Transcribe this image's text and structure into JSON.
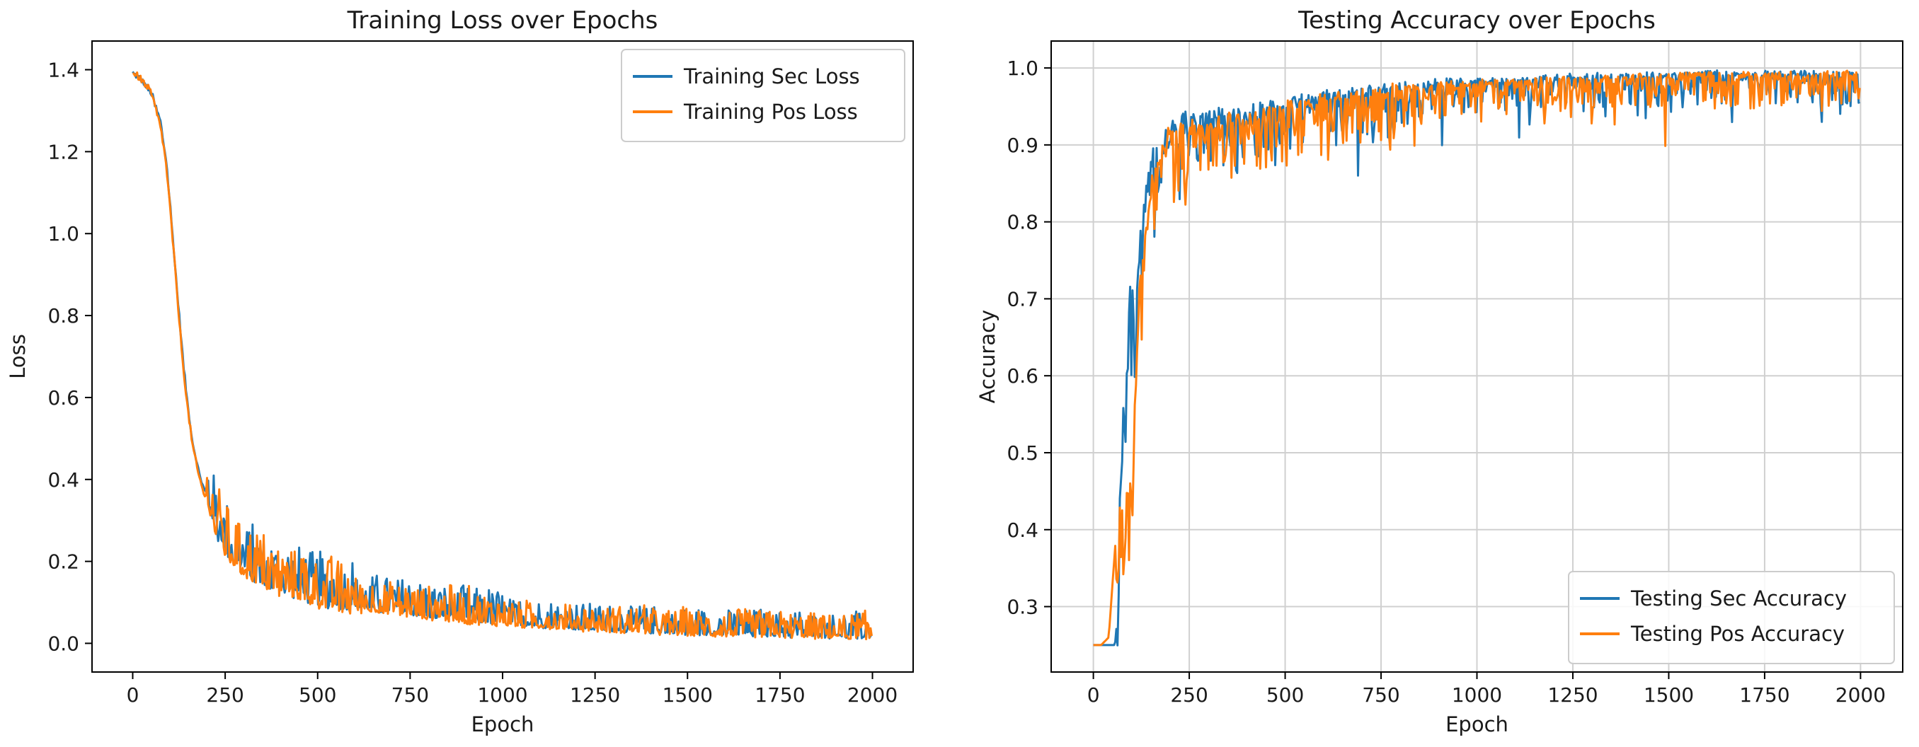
{
  "colors": {
    "sec": "#1f77b4",
    "pos": "#ff7f0e",
    "grid": "#d0d0d0"
  },
  "chart_data": [
    {
      "type": "line",
      "title": "Training Loss over Epochs",
      "xlabel": "Epoch",
      "ylabel": "Loss",
      "xlim": [
        -110,
        2110
      ],
      "ylim": [
        -0.07,
        1.47
      ],
      "xticks": [
        0,
        250,
        500,
        750,
        1000,
        1250,
        1500,
        1750,
        2000
      ],
      "xtick_labels": [
        "0",
        "250",
        "500",
        "750",
        "1000",
        "1250",
        "1500",
        "1750",
        "2000"
      ],
      "yticks": [
        0.0,
        0.2,
        0.4,
        0.6,
        0.8,
        1.0,
        1.2,
        1.4
      ],
      "ytick_labels": [
        "0.0",
        "0.2",
        "0.4",
        "0.6",
        "0.8",
        "1.0",
        "1.2",
        "1.4"
      ],
      "grid": false,
      "legend": "upper right",
      "series": [
        {
          "name": "Training Sec Loss",
          "color": "#1f77b4",
          "x": [
            0,
            25,
            50,
            75,
            90,
            100,
            110,
            120,
            130,
            140,
            150,
            160,
            175,
            190,
            200,
            215,
            230,
            250,
            275,
            300,
            325,
            350,
            375,
            400,
            450,
            500,
            550,
            600,
            650,
            700,
            750,
            800,
            850,
            900,
            950,
            1000,
            1050,
            1100,
            1150,
            1200,
            1250,
            1300,
            1350,
            1400,
            1450,
            1500,
            1550,
            1600,
            1650,
            1700,
            1750,
            1800,
            1850,
            1900,
            1950,
            2000
          ],
          "y": [
            1.39,
            1.37,
            1.34,
            1.27,
            1.18,
            1.08,
            0.97,
            0.86,
            0.75,
            0.65,
            0.57,
            0.5,
            0.43,
            0.38,
            0.36,
            0.32,
            0.27,
            0.24,
            0.21,
            0.19,
            0.17,
            0.16,
            0.15,
            0.14,
            0.13,
            0.11,
            0.1,
            0.095,
            0.09,
            0.085,
            0.08,
            0.075,
            0.07,
            0.065,
            0.06,
            0.055,
            0.05,
            0.048,
            0.045,
            0.042,
            0.04,
            0.038,
            0.036,
            0.034,
            0.032,
            0.03,
            0.029,
            0.028,
            0.027,
            0.026,
            0.025,
            0.024,
            0.023,
            0.022,
            0.021,
            0.02
          ]
        },
        {
          "name": "Training Pos Loss",
          "color": "#ff7f0e",
          "x": [
            0,
            25,
            50,
            75,
            90,
            100,
            110,
            120,
            130,
            140,
            150,
            160,
            175,
            190,
            200,
            215,
            230,
            250,
            275,
            300,
            325,
            350,
            375,
            400,
            450,
            500,
            550,
            600,
            650,
            700,
            750,
            800,
            850,
            900,
            950,
            1000,
            1050,
            1100,
            1150,
            1200,
            1250,
            1300,
            1350,
            1400,
            1450,
            1500,
            1550,
            1600,
            1650,
            1700,
            1750,
            1800,
            1850,
            1900,
            1950,
            2000
          ],
          "y": [
            1.39,
            1.37,
            1.34,
            1.26,
            1.17,
            1.07,
            0.96,
            0.85,
            0.74,
            0.64,
            0.56,
            0.49,
            0.42,
            0.37,
            0.35,
            0.31,
            0.26,
            0.23,
            0.2,
            0.18,
            0.17,
            0.155,
            0.145,
            0.135,
            0.125,
            0.105,
            0.095,
            0.09,
            0.085,
            0.08,
            0.075,
            0.07,
            0.065,
            0.06,
            0.055,
            0.05,
            0.048,
            0.045,
            0.042,
            0.04,
            0.038,
            0.036,
            0.034,
            0.032,
            0.03,
            0.028,
            0.027,
            0.026,
            0.025,
            0.024,
            0.023,
            0.022,
            0.021,
            0.02,
            0.019,
            0.018
          ]
        }
      ]
    },
    {
      "type": "line",
      "title": "Testing Accuracy over Epochs",
      "xlabel": "Epoch",
      "ylabel": "Accuracy",
      "xlim": [
        -110,
        2110
      ],
      "ylim": [
        0.215,
        1.035
      ],
      "xticks": [
        0,
        250,
        500,
        750,
        1000,
        1250,
        1500,
        1750,
        2000
      ],
      "xtick_labels": [
        "0",
        "250",
        "500",
        "750",
        "1000",
        "1250",
        "1500",
        "1750",
        "2000"
      ],
      "yticks": [
        0.3,
        0.4,
        0.5,
        0.6,
        0.7,
        0.8,
        0.9,
        1.0
      ],
      "ytick_labels": [
        "0.3",
        "0.4",
        "0.5",
        "0.6",
        "0.7",
        "0.8",
        "0.9",
        "1.0"
      ],
      "grid": true,
      "legend": "lower right",
      "series": [
        {
          "name": "Testing Sec Accuracy",
          "color": "#1f77b4",
          "x": [
            0,
            20,
            40,
            55,
            60,
            65,
            70,
            75,
            80,
            85,
            90,
            95,
            100,
            105,
            110,
            115,
            120,
            130,
            140,
            150,
            160,
            175,
            190,
            200,
            225,
            250,
            300,
            350,
            400,
            450,
            500,
            550,
            600,
            650,
            700,
            750,
            800,
            850,
            900,
            950,
            1000,
            1100,
            1200,
            1300,
            1400,
            1500,
            1600,
            1700,
            1800,
            1900,
            2000
          ],
          "y": [
            0.25,
            0.25,
            0.25,
            0.25,
            0.26,
            0.38,
            0.45,
            0.52,
            0.57,
            0.6,
            0.67,
            0.71,
            0.7,
            0.69,
            0.7,
            0.72,
            0.76,
            0.8,
            0.84,
            0.87,
            0.89,
            0.9,
            0.91,
            0.92,
            0.93,
            0.93,
            0.935,
            0.94,
            0.94,
            0.945,
            0.95,
            0.955,
            0.96,
            0.96,
            0.965,
            0.97,
            0.975,
            0.975,
            0.98,
            0.98,
            0.98,
            0.983,
            0.985,
            0.987,
            0.988,
            0.99,
            0.99,
            0.99,
            0.99,
            0.99,
            0.99
          ]
        },
        {
          "name": "Testing Pos Accuracy",
          "color": "#ff7f0e",
          "x": [
            0,
            20,
            40,
            50,
            60,
            70,
            80,
            90,
            100,
            110,
            120,
            130,
            140,
            150,
            160,
            175,
            190,
            200,
            225,
            250,
            300,
            350,
            400,
            450,
            500,
            550,
            600,
            650,
            700,
            750,
            800,
            850,
            900,
            950,
            1000,
            1100,
            1200,
            1300,
            1400,
            1500,
            1600,
            1700,
            1800,
            1900,
            2000
          ],
          "y": [
            0.25,
            0.25,
            0.26,
            0.33,
            0.4,
            0.42,
            0.43,
            0.44,
            0.45,
            0.58,
            0.7,
            0.75,
            0.8,
            0.84,
            0.86,
            0.88,
            0.9,
            0.91,
            0.92,
            0.92,
            0.925,
            0.93,
            0.935,
            0.94,
            0.945,
            0.95,
            0.955,
            0.958,
            0.962,
            0.965,
            0.97,
            0.972,
            0.975,
            0.977,
            0.978,
            0.98,
            0.982,
            0.984,
            0.986,
            0.987,
            0.988,
            0.988,
            0.989,
            0.989,
            0.99
          ]
        }
      ]
    }
  ]
}
